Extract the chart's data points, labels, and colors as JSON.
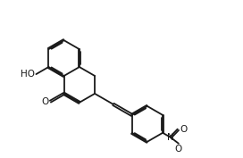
{
  "bg_color": "#ffffff",
  "line_color": "#1a1a1a",
  "line_width": 1.3,
  "dbo": 0.042,
  "figsize": [
    2.72,
    1.77
  ],
  "dpi": 100,
  "xlim": [
    0.5,
    9.5
  ],
  "ylim": [
    1.0,
    7.0
  ]
}
